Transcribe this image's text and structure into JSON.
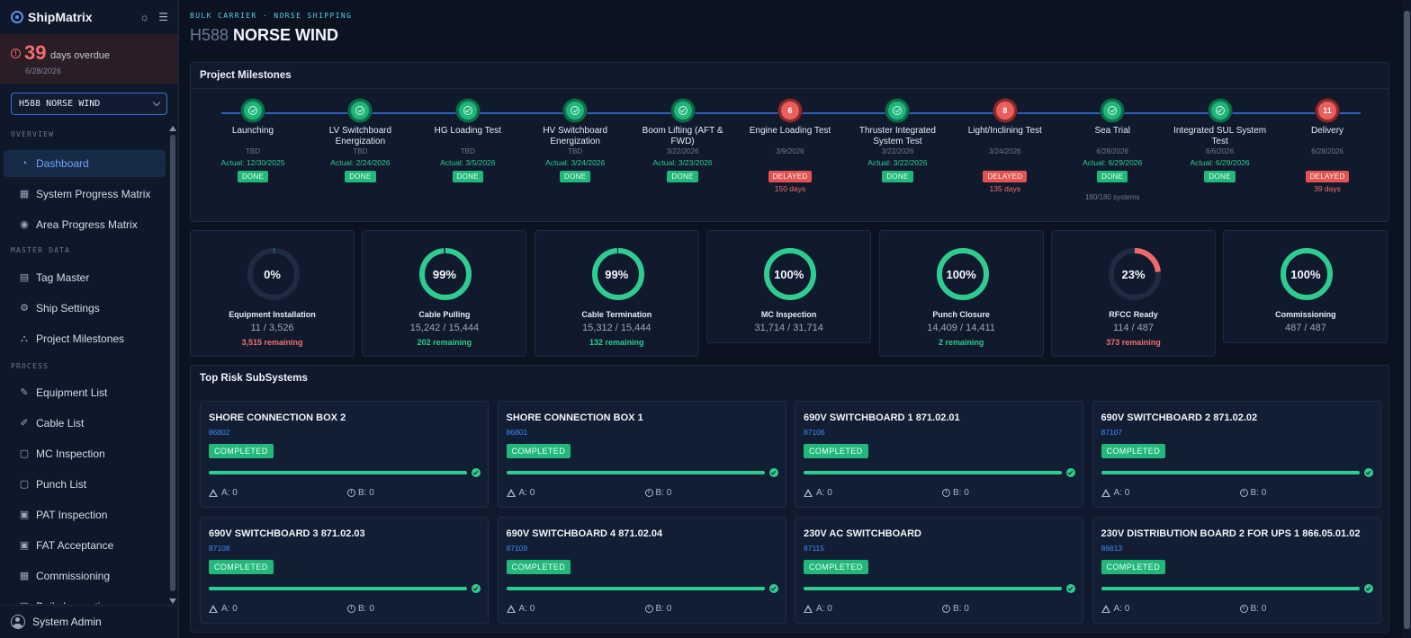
{
  "app": {
    "name": "ShipMatrix"
  },
  "overdue": {
    "count": "39",
    "label": "days overdue",
    "date": "6/28/2026"
  },
  "ship_selector": {
    "value": "H588 NORSE WIND"
  },
  "nav": {
    "sections": {
      "overview": "OVERVIEW",
      "master": "MASTER DATA",
      "process": "PROCESS"
    },
    "items": [
      {
        "label": "Dashboard",
        "icon": "dashboard-icon",
        "active": true
      },
      {
        "label": "System Progress Matrix",
        "icon": "grid-icon"
      },
      {
        "label": "Area Progress Matrix",
        "icon": "map-pin-icon"
      },
      {
        "label": "Tag Master",
        "icon": "list-icon"
      },
      {
        "label": "Ship Settings",
        "icon": "gear-icon"
      },
      {
        "label": "Project Milestones",
        "icon": "sitemap-icon"
      },
      {
        "label": "Equipment List",
        "icon": "wrench-icon"
      },
      {
        "label": "Cable List",
        "icon": "plug-icon"
      },
      {
        "label": "MC Inspection",
        "icon": "document-icon"
      },
      {
        "label": "Punch List",
        "icon": "document-icon"
      },
      {
        "label": "PAT Inspection",
        "icon": "clipboard-icon"
      },
      {
        "label": "FAT Acceptance",
        "icon": "clipboard-icon"
      },
      {
        "label": "Commissioning",
        "icon": "grid-icon"
      },
      {
        "label": "Daily Inspections",
        "icon": "calendar-icon"
      }
    ]
  },
  "user": {
    "name": "System Admin"
  },
  "header": {
    "breadcrumb": "BULK CARRIER · NORSE SHIPPING",
    "code": "H588",
    "title": "NORSE WIND"
  },
  "milestones": {
    "title": "Project Milestones",
    "items": [
      {
        "name": "Launching",
        "plan": "TBD",
        "actual": "Actual: 12/30/2025",
        "status": "DONE"
      },
      {
        "name": "LV Switchboard Energization",
        "plan": "TBD",
        "actual": "Actual: 2/24/2026",
        "status": "DONE"
      },
      {
        "name": "HG Loading Test",
        "plan": "TBD",
        "actual": "Actual: 3/5/2026",
        "status": "DONE"
      },
      {
        "name": "HV Switchboard Energization",
        "plan": "TBD",
        "actual": "Actual: 3/24/2026",
        "status": "DONE"
      },
      {
        "name": "Boom Lifting (AFT & FWD)",
        "plan": "3/22/2026",
        "actual": "Actual: 3/23/2026",
        "status": "DONE"
      },
      {
        "name": "Engine Loading Test",
        "plan": "3/9/2026",
        "actual": "",
        "status": "DELAYED",
        "late_badge": "6",
        "late_days": "150 days"
      },
      {
        "name": "Thruster Integrated System Test",
        "plan": "3/22/2026",
        "actual": "Actual: 3/22/2026",
        "status": "DONE"
      },
      {
        "name": "Light/Inclining Test",
        "plan": "3/24/2026",
        "actual": "",
        "status": "DELAYED",
        "late_badge": "8",
        "late_days": "135 days"
      },
      {
        "name": "Sea Trial",
        "plan": "6/28/2026",
        "actual": "Actual: 6/29/2026",
        "status": "DONE",
        "extra": "180/180 systems"
      },
      {
        "name": "Integrated SUL System Test",
        "plan": "6/6/2026",
        "actual": "Actual: 6/29/2026",
        "status": "DONE"
      },
      {
        "name": "Delivery",
        "plan": "6/28/2026",
        "actual": "",
        "status": "DELAYED",
        "late_badge": "11",
        "late_days": "39 days"
      }
    ]
  },
  "kpis": [
    {
      "label": "Equipment Installation",
      "pct": "0%",
      "value": 0.003,
      "count": "11 / 3,526",
      "remaining": "3,515 remaining",
      "rem_color": "red",
      "ring": "#2ecc8f"
    },
    {
      "label": "Cable Pulling",
      "pct": "99%",
      "value": 0.987,
      "count": "15,242 / 15,444",
      "remaining": "202 remaining",
      "rem_color": "green",
      "ring": "#2ecc8f"
    },
    {
      "label": "Cable Termination",
      "pct": "99%",
      "value": 0.991,
      "count": "15,312 / 15,444",
      "remaining": "132 remaining",
      "rem_color": "green",
      "ring": "#2ecc8f"
    },
    {
      "label": "MC Inspection",
      "pct": "100%",
      "value": 1.0,
      "count": "31,714 / 31,714",
      "remaining": "",
      "rem_color": "green",
      "ring": "#2ecc8f"
    },
    {
      "label": "Punch Closure",
      "pct": "100%",
      "value": 0.9999,
      "count": "14,409 / 14,411",
      "remaining": "2 remaining",
      "rem_color": "green",
      "ring": "#2ecc8f"
    },
    {
      "label": "RFCC Ready",
      "pct": "23%",
      "value": 0.234,
      "count": "114 / 487",
      "remaining": "373 remaining",
      "rem_color": "red",
      "ring": "#f06a6a"
    },
    {
      "label": "Commissioning",
      "pct": "100%",
      "value": 1.0,
      "count": "487 / 487",
      "remaining": "",
      "rem_color": "green",
      "ring": "#2ecc8f"
    }
  ],
  "risk": {
    "title": "Top Risk SubSystems",
    "items": [
      {
        "name": "SHORE CONNECTION BOX 2",
        "code": "86802",
        "status": "COMPLETED",
        "a": "A: 0",
        "b": "B: 0"
      },
      {
        "name": "SHORE CONNECTION BOX 1",
        "code": "86801",
        "status": "COMPLETED",
        "a": "A: 0",
        "b": "B: 0"
      },
      {
        "name": "690V SWITCHBOARD 1 871.02.01",
        "code": "87106",
        "status": "COMPLETED",
        "a": "A: 0",
        "b": "B: 0"
      },
      {
        "name": "690V SWITCHBOARD 2 871.02.02",
        "code": "87107",
        "status": "COMPLETED",
        "a": "A: 0",
        "b": "B: 0"
      },
      {
        "name": "690V SWITCHBOARD 3 871.02.03",
        "code": "87108",
        "status": "COMPLETED",
        "a": "A: 0",
        "b": "B: 0"
      },
      {
        "name": "690V SWITCHBOARD 4 871.02.04",
        "code": "87109",
        "status": "COMPLETED",
        "a": "A: 0",
        "b": "B: 0"
      },
      {
        "name": "230V AC SWITCHBOARD",
        "code": "87115",
        "status": "COMPLETED",
        "a": "A: 0",
        "b": "B: 0"
      },
      {
        "name": "230V DISTRIBUTION BOARD 2 FOR UPS 1 866.05.01.02",
        "code": "86613",
        "status": "COMPLETED",
        "a": "A: 0",
        "b": "B: 0"
      }
    ]
  }
}
